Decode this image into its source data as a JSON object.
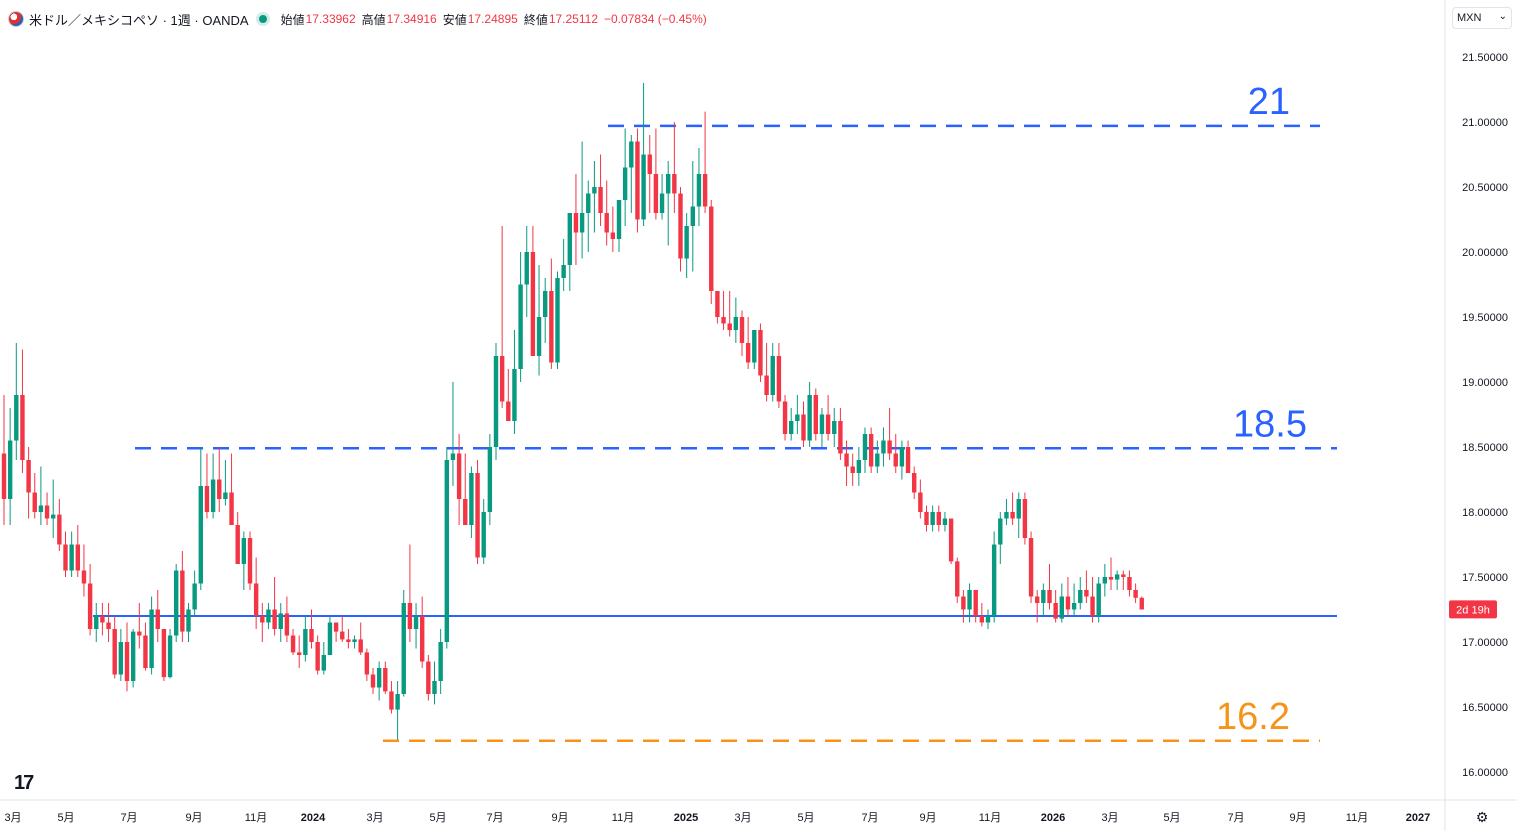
{
  "header": {
    "title": "米ドル／メキシコペソ · 1週 · OANDA",
    "open_label": "始値",
    "open": "17.33962",
    "high_label": "高値",
    "high": "17.34916",
    "low_label": "安値",
    "low": "17.24895",
    "close_label": "終値",
    "close": "17.25112",
    "change": "−0.07834 (−0.45%)"
  },
  "currency_selector": {
    "value": "MXN"
  },
  "countdown": "2d 19h",
  "colors": {
    "up": "#089981",
    "down": "#f23645",
    "support": "#2962ff",
    "target": "#f7931a"
  },
  "chart_data": {
    "type": "candlestick",
    "symbol": "USDMXN",
    "interval": "1W",
    "y_axis": {
      "ticks": [
        "16.00000",
        "16.50000",
        "17.00000",
        "17.50000",
        "18.00000",
        "18.50000",
        "19.00000",
        "19.50000",
        "20.00000",
        "20.50000",
        "21.00000",
        "21.50000"
      ],
      "range": [
        15.85,
        21.85
      ]
    },
    "x_axis": {
      "ticks": [
        {
          "label": "3月",
          "x": 13,
          "bold": false
        },
        {
          "label": "5月",
          "x": 66,
          "bold": false
        },
        {
          "label": "7月",
          "x": 129,
          "bold": false
        },
        {
          "label": "9月",
          "x": 194,
          "bold": false
        },
        {
          "label": "11月",
          "x": 256,
          "bold": false
        },
        {
          "label": "2024",
          "x": 313,
          "bold": true
        },
        {
          "label": "3月",
          "x": 375,
          "bold": false
        },
        {
          "label": "5月",
          "x": 438,
          "bold": false
        },
        {
          "label": "7月",
          "x": 495,
          "bold": false
        },
        {
          "label": "9月",
          "x": 560,
          "bold": false
        },
        {
          "label": "11月",
          "x": 623,
          "bold": false
        },
        {
          "label": "2025",
          "x": 686,
          "bold": true
        },
        {
          "label": "3月",
          "x": 743,
          "bold": false
        },
        {
          "label": "5月",
          "x": 806,
          "bold": false
        },
        {
          "label": "7月",
          "x": 870,
          "bold": false
        },
        {
          "label": "9月",
          "x": 928,
          "bold": false
        },
        {
          "label": "11月",
          "x": 990,
          "bold": false
        },
        {
          "label": "2026",
          "x": 1053,
          "bold": true
        },
        {
          "label": "3月",
          "x": 1110,
          "bold": false
        },
        {
          "label": "5月",
          "x": 1172,
          "bold": false
        },
        {
          "label": "7月",
          "x": 1236,
          "bold": false
        },
        {
          "label": "9月",
          "x": 1298,
          "bold": false
        },
        {
          "label": "11月",
          "x": 1357,
          "bold": false
        },
        {
          "label": "2027",
          "x": 1418,
          "bold": true
        }
      ]
    },
    "current_price": 17.25112,
    "horizontal_lines": [
      {
        "value": 20.97,
        "style": "dashed",
        "color": "#2962ff",
        "label": "21",
        "label_color": "#2962ff",
        "from": "2024-10",
        "to": "2026-09"
      },
      {
        "value": 18.49,
        "style": "dashed",
        "color": "#2962ff",
        "label": "18.5",
        "label_color": "#2962ff",
        "from": "2023-07",
        "to": "2026-10"
      },
      {
        "value": 17.2,
        "style": "solid",
        "color": "#2962ff",
        "label": "",
        "label_color": "",
        "from": "2023-06",
        "to": "2026-10"
      },
      {
        "value": 16.24,
        "style": "dashed",
        "color": "#f7931a",
        "label": "16.2",
        "label_color": "#f7931a",
        "from": "2024-03",
        "to": "2026-09"
      }
    ],
    "candles": [
      [
        18.45,
        18.9,
        17.9,
        18.1
      ],
      [
        18.1,
        18.8,
        17.9,
        18.55
      ],
      [
        18.55,
        19.3,
        18.4,
        18.9
      ],
      [
        18.9,
        19.25,
        18.3,
        18.4
      ],
      [
        18.4,
        18.5,
        17.95,
        18.15
      ],
      [
        18.15,
        18.3,
        17.95,
        18.0
      ],
      [
        18.0,
        18.35,
        17.9,
        18.05
      ],
      [
        18.05,
        18.15,
        17.9,
        17.95
      ],
      [
        17.95,
        18.25,
        17.8,
        17.98
      ],
      [
        17.98,
        18.1,
        17.7,
        17.75
      ],
      [
        17.75,
        17.85,
        17.5,
        17.55
      ],
      [
        17.55,
        17.85,
        17.5,
        17.75
      ],
      [
        17.75,
        17.9,
        17.5,
        17.55
      ],
      [
        17.55,
        17.75,
        17.35,
        17.45
      ],
      [
        17.45,
        17.6,
        17.05,
        17.1
      ],
      [
        17.1,
        17.3,
        17.0,
        17.2
      ],
      [
        17.2,
        17.3,
        17.05,
        17.15
      ],
      [
        17.15,
        17.3,
        17.0,
        17.1
      ],
      [
        17.1,
        17.2,
        16.72,
        16.75
      ],
      [
        16.75,
        17.1,
        16.7,
        17.0
      ],
      [
        17.0,
        17.15,
        16.62,
        16.7
      ],
      [
        16.7,
        17.1,
        16.65,
        17.08
      ],
      [
        17.08,
        17.3,
        16.95,
        17.05
      ],
      [
        17.05,
        17.15,
        16.78,
        16.8
      ],
      [
        16.8,
        17.35,
        16.75,
        17.25
      ],
      [
        17.25,
        17.4,
        17.0,
        17.1
      ],
      [
        17.1,
        17.05,
        16.7,
        16.73
      ],
      [
        16.73,
        17.1,
        16.72,
        17.05
      ],
      [
        17.05,
        17.6,
        17.0,
        17.55
      ],
      [
        17.55,
        17.7,
        17.0,
        17.08
      ],
      [
        17.08,
        17.3,
        17.0,
        17.25
      ],
      [
        17.25,
        17.55,
        17.2,
        17.45
      ],
      [
        17.45,
        18.5,
        17.4,
        18.2
      ],
      [
        18.2,
        18.45,
        17.95,
        18.0
      ],
      [
        18.0,
        18.45,
        17.95,
        18.25
      ],
      [
        18.25,
        18.5,
        18.0,
        18.1
      ],
      [
        18.1,
        18.4,
        18.05,
        18.15
      ],
      [
        18.15,
        18.45,
        17.9,
        17.9
      ],
      [
        17.9,
        18.0,
        17.6,
        17.6
      ],
      [
        17.6,
        17.85,
        17.4,
        17.8
      ],
      [
        17.8,
        17.85,
        17.4,
        17.45
      ],
      [
        17.45,
        17.65,
        17.1,
        17.2
      ],
      [
        17.2,
        17.3,
        17.0,
        17.15
      ],
      [
        17.15,
        17.3,
        17.1,
        17.25
      ],
      [
        17.25,
        17.5,
        17.05,
        17.1
      ],
      [
        17.1,
        17.3,
        17.0,
        17.22
      ],
      [
        17.22,
        17.35,
        17.0,
        17.05
      ],
      [
        17.05,
        17.1,
        16.9,
        16.92
      ],
      [
        16.92,
        17.05,
        16.8,
        16.9
      ],
      [
        16.9,
        17.2,
        16.85,
        17.1
      ],
      [
        17.1,
        17.25,
        16.95,
        17.0
      ],
      [
        17.0,
        17.05,
        16.75,
        16.78
      ],
      [
        16.78,
        17.0,
        16.75,
        16.9
      ],
      [
        16.9,
        17.2,
        16.9,
        17.15
      ],
      [
        17.15,
        17.15,
        17.0,
        17.08
      ],
      [
        17.08,
        17.2,
        17.0,
        17.02
      ],
      [
        17.02,
        17.1,
        16.95,
        17.0
      ],
      [
        17.0,
        17.05,
        16.95,
        17.02
      ],
      [
        17.02,
        17.15,
        16.9,
        16.92
      ],
      [
        16.92,
        16.95,
        16.7,
        16.75
      ],
      [
        16.75,
        16.8,
        16.6,
        16.65
      ],
      [
        16.65,
        16.85,
        16.55,
        16.8
      ],
      [
        16.8,
        16.85,
        16.6,
        16.62
      ],
      [
        16.62,
        16.7,
        16.45,
        16.48
      ],
      [
        16.48,
        16.7,
        16.25,
        16.6
      ],
      [
        16.6,
        17.4,
        16.58,
        17.3
      ],
      [
        17.3,
        17.75,
        17.0,
        17.1
      ],
      [
        17.1,
        17.3,
        16.95,
        17.2
      ],
      [
        17.2,
        17.35,
        16.8,
        16.85
      ],
      [
        16.85,
        16.9,
        16.55,
        16.6
      ],
      [
        16.6,
        16.85,
        16.52,
        16.7
      ],
      [
        16.7,
        17.1,
        16.6,
        17.0
      ],
      [
        17.0,
        18.5,
        16.95,
        18.4
      ],
      [
        18.4,
        19.0,
        18.2,
        18.45
      ],
      [
        18.45,
        18.6,
        17.9,
        18.1
      ],
      [
        18.1,
        18.45,
        17.9,
        17.9
      ],
      [
        17.9,
        18.35,
        17.8,
        18.3
      ],
      [
        18.3,
        18.4,
        17.6,
        17.65
      ],
      [
        17.65,
        18.1,
        17.6,
        18.0
      ],
      [
        18.0,
        18.6,
        17.9,
        18.5
      ],
      [
        18.5,
        19.3,
        18.4,
        19.2
      ],
      [
        19.2,
        20.2,
        18.8,
        18.85
      ],
      [
        18.85,
        19.1,
        18.7,
        18.7
      ],
      [
        18.7,
        19.4,
        18.6,
        19.1
      ],
      [
        19.1,
        20.0,
        19.0,
        19.75
      ],
      [
        19.75,
        20.2,
        19.5,
        20.0
      ],
      [
        20.0,
        20.2,
        19.2,
        19.2
      ],
      [
        19.2,
        19.9,
        19.05,
        19.5
      ],
      [
        19.5,
        19.8,
        19.3,
        19.7
      ],
      [
        19.7,
        19.95,
        19.1,
        19.15
      ],
      [
        19.15,
        19.85,
        19.1,
        19.8
      ],
      [
        19.8,
        20.1,
        19.7,
        19.9
      ],
      [
        19.9,
        20.3,
        19.7,
        20.3
      ],
      [
        20.3,
        20.6,
        19.9,
        20.15
      ],
      [
        20.15,
        20.85,
        19.95,
        20.3
      ],
      [
        20.3,
        20.55,
        20.0,
        20.45
      ],
      [
        20.45,
        20.7,
        20.15,
        20.5
      ],
      [
        20.5,
        20.75,
        20.2,
        20.3
      ],
      [
        20.3,
        20.55,
        20.05,
        20.15
      ],
      [
        20.15,
        20.35,
        20.0,
        20.1
      ],
      [
        20.1,
        20.4,
        20.0,
        20.4
      ],
      [
        20.4,
        20.95,
        20.2,
        20.65
      ],
      [
        20.65,
        20.9,
        20.3,
        20.85
      ],
      [
        20.85,
        20.95,
        20.15,
        20.25
      ],
      [
        20.25,
        21.3,
        20.2,
        20.75
      ],
      [
        20.75,
        20.9,
        20.3,
        20.6
      ],
      [
        20.6,
        20.95,
        20.25,
        20.3
      ],
      [
        20.3,
        20.6,
        20.25,
        20.45
      ],
      [
        20.45,
        20.7,
        20.05,
        20.6
      ],
      [
        20.6,
        21.0,
        20.3,
        20.45
      ],
      [
        20.45,
        20.5,
        19.85,
        19.95
      ],
      [
        19.95,
        20.3,
        19.8,
        20.2
      ],
      [
        20.2,
        20.7,
        19.85,
        20.35
      ],
      [
        20.35,
        20.8,
        20.2,
        20.6
      ],
      [
        20.6,
        21.08,
        20.3,
        20.35
      ],
      [
        20.35,
        20.4,
        19.6,
        19.7
      ],
      [
        19.7,
        19.7,
        19.45,
        19.5
      ],
      [
        19.5,
        19.7,
        19.4,
        19.45
      ],
      [
        19.45,
        19.7,
        19.35,
        19.4
      ],
      [
        19.4,
        19.65,
        19.3,
        19.5
      ],
      [
        19.5,
        19.55,
        19.2,
        19.3
      ],
      [
        19.3,
        19.5,
        19.1,
        19.15
      ],
      [
        19.15,
        19.4,
        19.1,
        19.4
      ],
      [
        19.4,
        19.45,
        19.0,
        19.05
      ],
      [
        19.05,
        19.3,
        18.85,
        18.9
      ],
      [
        18.9,
        19.3,
        18.85,
        19.2
      ],
      [
        19.2,
        19.3,
        18.8,
        18.85
      ],
      [
        18.85,
        18.9,
        18.55,
        18.6
      ],
      [
        18.6,
        18.8,
        18.55,
        18.7
      ],
      [
        18.7,
        18.9,
        18.6,
        18.75
      ],
      [
        18.75,
        18.85,
        18.5,
        18.55
      ],
      [
        18.55,
        19.0,
        18.5,
        18.9
      ],
      [
        18.9,
        18.95,
        18.55,
        18.6
      ],
      [
        18.6,
        18.8,
        18.5,
        18.75
      ],
      [
        18.75,
        18.9,
        18.55,
        18.6
      ],
      [
        18.6,
        18.8,
        18.5,
        18.7
      ],
      [
        18.7,
        18.8,
        18.4,
        18.45
      ],
      [
        18.45,
        18.55,
        18.2,
        18.35
      ],
      [
        18.35,
        18.45,
        18.2,
        18.3
      ],
      [
        18.3,
        18.5,
        18.2,
        18.4
      ],
      [
        18.4,
        18.65,
        18.3,
        18.6
      ],
      [
        18.6,
        18.65,
        18.3,
        18.35
      ],
      [
        18.35,
        18.55,
        18.3,
        18.45
      ],
      [
        18.45,
        18.65,
        18.35,
        18.55
      ],
      [
        18.55,
        18.8,
        18.4,
        18.45
      ],
      [
        18.45,
        18.6,
        18.3,
        18.35
      ],
      [
        18.35,
        18.55,
        18.25,
        18.5
      ],
      [
        18.5,
        18.55,
        18.3,
        18.3
      ],
      [
        18.3,
        18.35,
        18.1,
        18.15
      ],
      [
        18.15,
        18.25,
        17.95,
        18.0
      ],
      [
        18.0,
        18.05,
        17.85,
        17.9
      ],
      [
        17.9,
        18.05,
        17.85,
        18.0
      ],
      [
        18.0,
        18.05,
        17.85,
        17.9
      ],
      [
        17.9,
        18.0,
        17.85,
        17.95
      ],
      [
        17.95,
        17.95,
        17.6,
        17.62
      ],
      [
        17.62,
        17.65,
        17.3,
        17.35
      ],
      [
        17.35,
        17.4,
        17.15,
        17.25
      ],
      [
        17.25,
        17.45,
        17.15,
        17.4
      ],
      [
        17.4,
        17.4,
        17.15,
        17.2
      ],
      [
        17.2,
        17.3,
        17.12,
        17.15
      ],
      [
        17.15,
        17.25,
        17.1,
        17.2
      ],
      [
        17.2,
        17.85,
        17.15,
        17.75
      ],
      [
        17.75,
        18.0,
        17.6,
        17.95
      ],
      [
        17.95,
        18.1,
        17.9,
        18.0
      ],
      [
        18.0,
        18.15,
        17.9,
        17.95
      ],
      [
        17.95,
        18.15,
        17.8,
        18.1
      ],
      [
        18.1,
        18.15,
        17.75,
        17.8
      ],
      [
        17.8,
        17.85,
        17.3,
        17.35
      ],
      [
        17.35,
        17.4,
        17.15,
        17.3
      ],
      [
        17.3,
        17.45,
        17.2,
        17.4
      ],
      [
        17.4,
        17.6,
        17.25,
        17.3
      ],
      [
        17.3,
        17.4,
        17.15,
        17.18
      ],
      [
        17.18,
        17.45,
        17.15,
        17.35
      ],
      [
        17.35,
        17.5,
        17.2,
        17.25
      ],
      [
        17.25,
        17.45,
        17.2,
        17.3
      ],
      [
        17.3,
        17.5,
        17.25,
        17.4
      ],
      [
        17.4,
        17.55,
        17.3,
        17.35
      ],
      [
        17.35,
        17.5,
        17.15,
        17.2
      ],
      [
        17.2,
        17.5,
        17.15,
        17.45
      ],
      [
        17.45,
        17.6,
        17.35,
        17.5
      ],
      [
        17.5,
        17.65,
        17.4,
        17.48
      ],
      [
        17.48,
        17.55,
        17.4,
        17.52
      ],
      [
        17.52,
        17.55,
        17.4,
        17.5
      ],
      [
        17.5,
        17.55,
        17.35,
        17.4
      ],
      [
        17.4,
        17.45,
        17.3,
        17.34
      ],
      [
        17.34,
        17.35,
        17.25,
        17.25
      ]
    ]
  }
}
